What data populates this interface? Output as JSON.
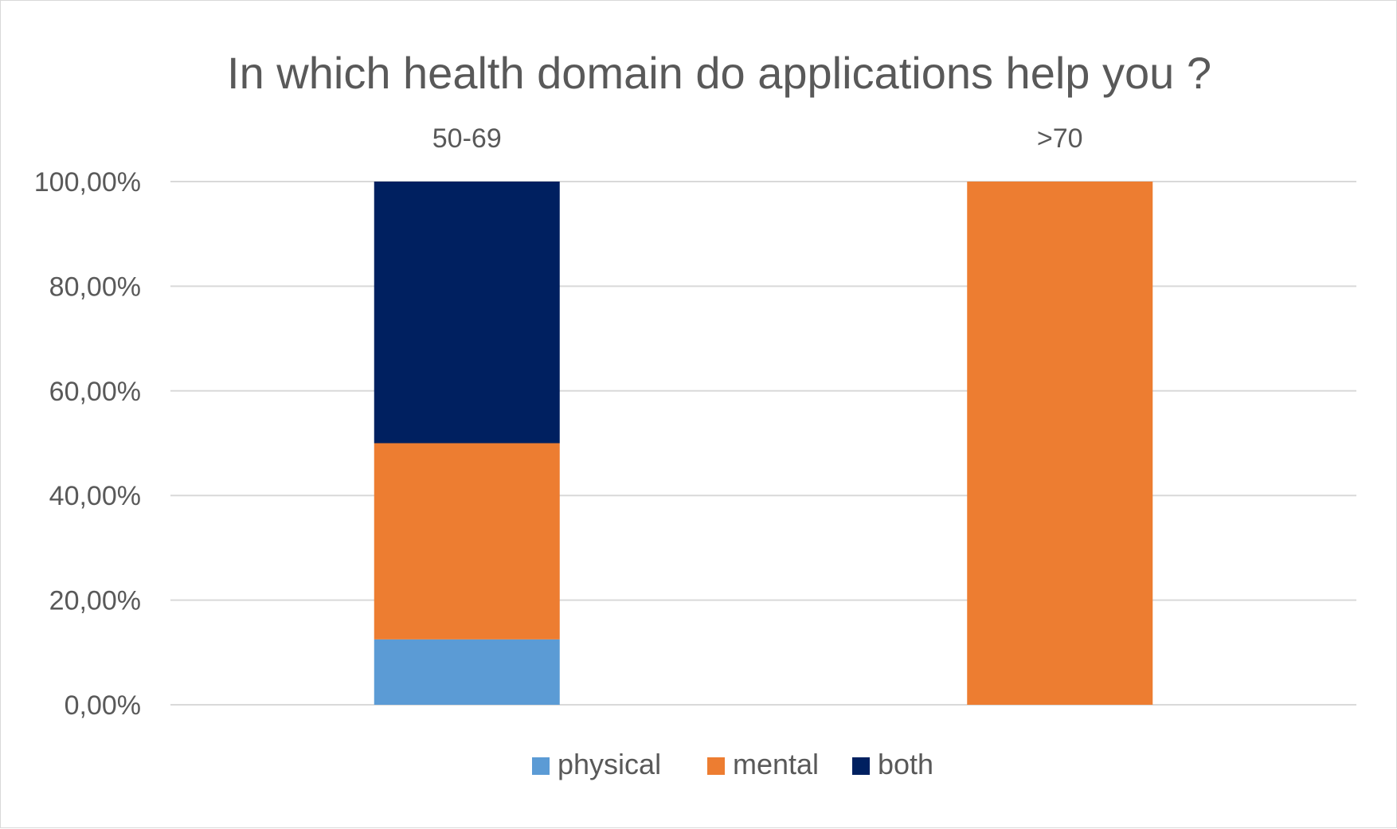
{
  "chart_data": {
    "type": "bar",
    "stacked": true,
    "title": "In which health domain do applications help you ?",
    "xlabel": "",
    "ylabel": "",
    "categories": [
      "50-69",
      ">70"
    ],
    "category_label_position": "top",
    "ylim": [
      0,
      100
    ],
    "yticks": [
      0,
      20,
      40,
      60,
      80,
      100
    ],
    "ytick_labels": [
      "0,00%",
      "20,00%",
      "40,00%",
      "60,00%",
      "80,00%",
      "100,00%"
    ],
    "grid": true,
    "legend_position": "bottom",
    "series": [
      {
        "name": "physical",
        "color": "#5b9bd5",
        "values": [
          12.5,
          0
        ]
      },
      {
        "name": "mental",
        "color": "#ed7d31",
        "values": [
          37.5,
          100
        ]
      },
      {
        "name": "both",
        "color": "#002060",
        "values": [
          50,
          0
        ]
      }
    ]
  }
}
